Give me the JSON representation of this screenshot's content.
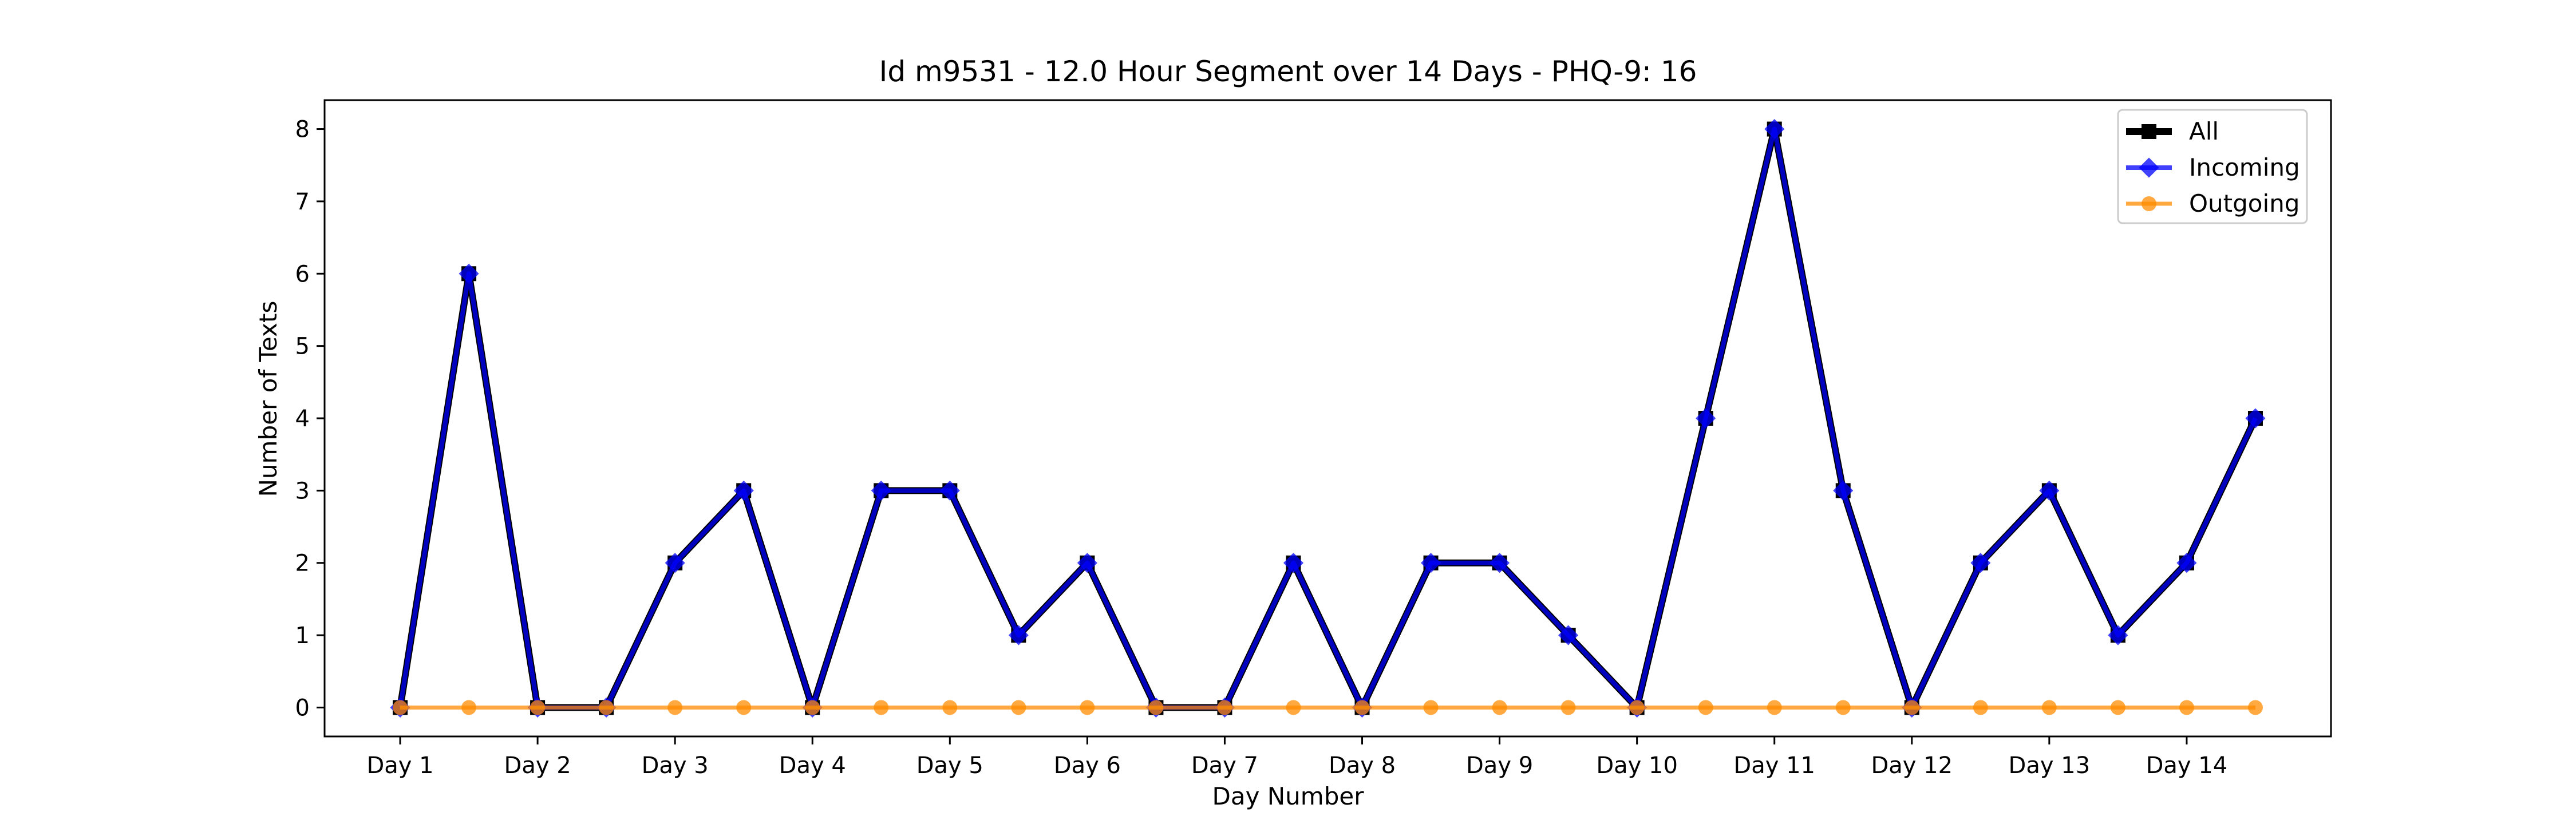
{
  "chart_data": {
    "type": "line",
    "title": "Id m9531 - 12.0 Hour Segment over 14 Days - PHQ-9: 16",
    "xlabel": "Day Number",
    "ylabel": "Number of Texts",
    "ylim": [
      -0.4,
      8.4
    ],
    "yticks": [
      0,
      1,
      2,
      3,
      4,
      5,
      6,
      7,
      8
    ],
    "grid": false,
    "legend_position": "top-right",
    "categories": [
      "Day 1",
      "Day 2",
      "Day 3",
      "Day 4",
      "Day 5",
      "Day 6",
      "Day 7",
      "Day 8",
      "Day 9",
      "Day 10",
      "Day 11",
      "Day 12",
      "Day 13",
      "Day 14"
    ],
    "x": [
      0,
      0.5,
      1,
      1.5,
      2,
      2.5,
      3,
      3.5,
      4,
      4.5,
      5,
      5.5,
      6,
      6.5,
      7,
      7.5,
      8,
      8.5,
      9,
      9.5,
      10,
      10.5,
      11,
      11.5,
      12,
      12.5,
      13,
      13.5
    ],
    "series": [
      {
        "name": "All",
        "color": "#000000",
        "marker": "square",
        "values": [
          0,
          6,
          0,
          0,
          2,
          3,
          0,
          3,
          3,
          1,
          2,
          0,
          0,
          2,
          0,
          2,
          2,
          1,
          0,
          4,
          8,
          3,
          0,
          2,
          3,
          1,
          2,
          4
        ]
      },
      {
        "name": "Incoming",
        "color": "#0000ff",
        "marker": "diamond",
        "values": [
          0,
          6,
          0,
          0,
          2,
          3,
          0,
          3,
          3,
          1,
          2,
          0,
          0,
          2,
          0,
          2,
          2,
          1,
          0,
          4,
          8,
          3,
          0,
          2,
          3,
          1,
          2,
          4
        ]
      },
      {
        "name": "Outgoing",
        "color": "#ff8c00",
        "marker": "circle",
        "values": [
          0,
          0,
          0,
          0,
          0,
          0,
          0,
          0,
          0,
          0,
          0,
          0,
          0,
          0,
          0,
          0,
          0,
          0,
          0,
          0,
          0,
          0,
          0,
          0,
          0,
          0,
          0,
          0
        ]
      }
    ]
  }
}
